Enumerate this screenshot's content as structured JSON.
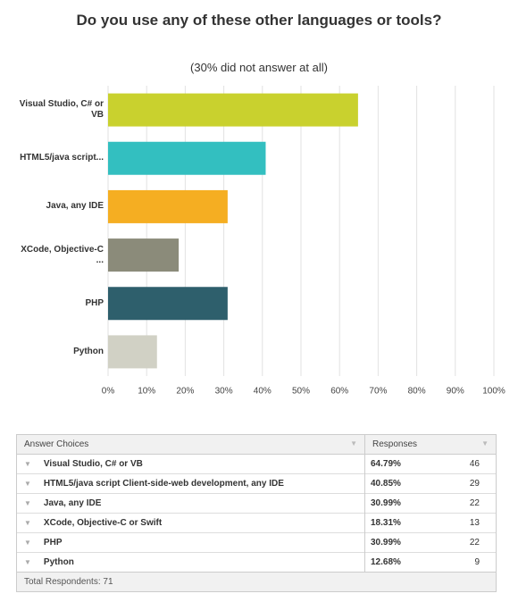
{
  "chart_data": {
    "type": "hbar",
    "title": "Do you use any of these other languages or tools?",
    "subtitle": "(30% did not answer at all)",
    "categories": [
      "Visual Studio, C# or VB",
      "HTML5/java script...",
      "Java, any IDE",
      "XCode, Objective-C ...",
      "PHP",
      "Python"
    ],
    "values": [
      64.79,
      40.85,
      30.99,
      18.31,
      30.99,
      12.68
    ],
    "colors": [
      "#c9d12e",
      "#33bfc0",
      "#f5ae22",
      "#8b8b7a",
      "#2e5f6c",
      "#d1d1c5"
    ],
    "xlim": [
      0,
      100
    ],
    "xticks": [
      {
        "value": 0,
        "label": "0%"
      },
      {
        "value": 10,
        "label": "10%"
      },
      {
        "value": 20,
        "label": "20%"
      },
      {
        "value": 30,
        "label": "30%"
      },
      {
        "value": 40,
        "label": "40%"
      },
      {
        "value": 50,
        "label": "50%"
      },
      {
        "value": 60,
        "label": "60%"
      },
      {
        "value": 70,
        "label": "70%"
      },
      {
        "value": 80,
        "label": "80%"
      },
      {
        "value": 90,
        "label": "90%"
      },
      {
        "value": 100,
        "label": "100%"
      }
    ],
    "grid": true
  },
  "table": {
    "header": [
      "Answer Choices",
      "Responses"
    ],
    "rows": [
      [
        "Visual Studio, C# or VB",
        "64.79%",
        "46"
      ],
      [
        "HTML5/java script Client-side-web development, any IDE",
        "40.85%",
        "29"
      ],
      [
        "Java, any IDE",
        "30.99%",
        "22"
      ],
      [
        "XCode, Objective-C or Swift",
        "18.31%",
        "13"
      ],
      [
        "PHP",
        "30.99%",
        "22"
      ],
      [
        "Python",
        "12.68%",
        "9"
      ]
    ],
    "footer": "Total Respondents: 71"
  }
}
